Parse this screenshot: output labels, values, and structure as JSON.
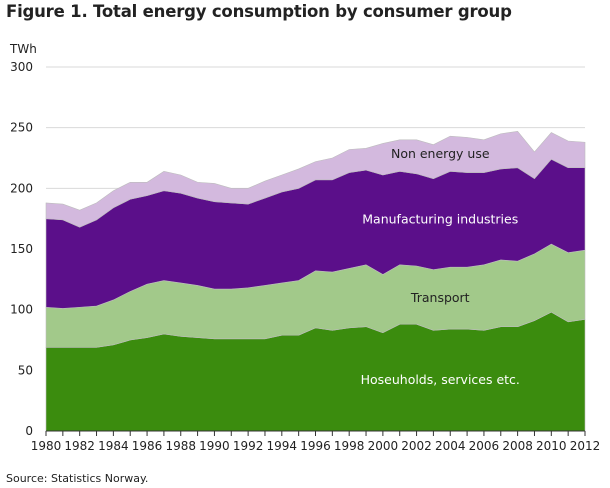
{
  "figure_title": "Figure 1. Total energy consumption by consumer group",
  "source_note": "Source: Statistics Norway.",
  "chart_data": {
    "type": "area",
    "stacked": true,
    "title": "Figure 1. Total energy consumption by consumer group",
    "ylabel": "TWh",
    "xlabel": "",
    "ylim": [
      0,
      300
    ],
    "yticks": [
      0,
      50,
      100,
      150,
      200,
      250,
      300
    ],
    "xticks": [
      1980,
      1982,
      1984,
      1986,
      1988,
      1990,
      1992,
      1994,
      1996,
      1998,
      2000,
      2002,
      2004,
      2006,
      2008,
      2010,
      2012
    ],
    "grid": "horizontal",
    "x": [
      1980,
      1981,
      1982,
      1983,
      1984,
      1985,
      1986,
      1987,
      1988,
      1989,
      1990,
      1991,
      1992,
      1993,
      1994,
      1995,
      1996,
      1997,
      1998,
      1999,
      2000,
      2001,
      2002,
      2003,
      2004,
      2005,
      2006,
      2007,
      2008,
      2009,
      2010,
      2011,
      2012
    ],
    "series": [
      {
        "name": "Hoseuholds, services etc.",
        "color": "#3b8c0e",
        "label_color": "#ffffff",
        "values": [
          69,
          69,
          69,
          69,
          71,
          75,
          77,
          80,
          78,
          77,
          76,
          76,
          76,
          76,
          79,
          79,
          85,
          83,
          85,
          86,
          81,
          88,
          88,
          83,
          84,
          84,
          83,
          86,
          86,
          91,
          98,
          90,
          92
        ]
      },
      {
        "name": "Transport",
        "color": "#a2c98a",
        "label_color": "#222222",
        "values": [
          33,
          32,
          33,
          34,
          37,
          40,
          44,
          44,
          44,
          43,
          41,
          41,
          42,
          44,
          43,
          45,
          47,
          48,
          49,
          51,
          48,
          49,
          48,
          50,
          51,
          51,
          54,
          55,
          54,
          55,
          56,
          57,
          57
        ]
      },
      {
        "name": "Manufacturing industries",
        "color": "#5b0f8a",
        "label_color": "#ffffff",
        "values": [
          73,
          73,
          66,
          71,
          76,
          76,
          73,
          74,
          74,
          72,
          72,
          71,
          69,
          72,
          75,
          76,
          75,
          76,
          79,
          78,
          82,
          77,
          76,
          75,
          79,
          78,
          76,
          75,
          77,
          62,
          70,
          70,
          68
        ]
      },
      {
        "name": "Non energy use",
        "color": "#d3b9de",
        "label_color": "#222222",
        "values": [
          13,
          13,
          14,
          14,
          14,
          14,
          11,
          16,
          15,
          13,
          15,
          12,
          13,
          14,
          14,
          16,
          15,
          18,
          19,
          18,
          26,
          26,
          28,
          28,
          29,
          29,
          27,
          29,
          30,
          22,
          22,
          22,
          21
        ]
      }
    ]
  }
}
